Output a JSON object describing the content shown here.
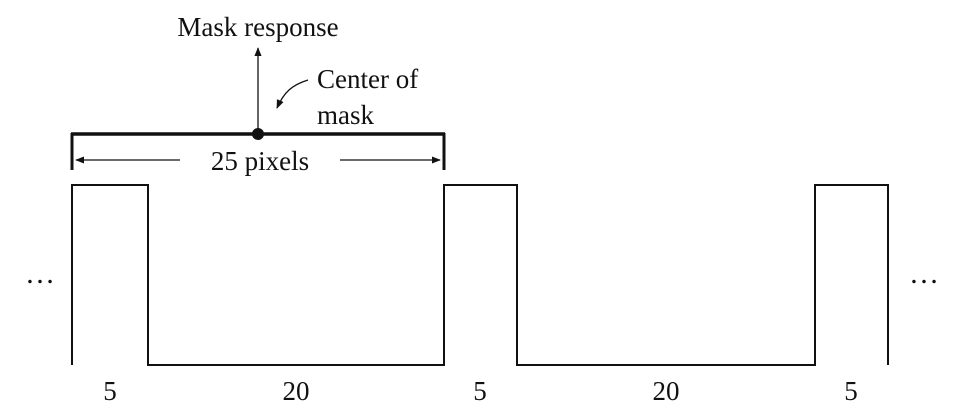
{
  "labels": {
    "mask_response": "Mask response",
    "center_of_line1": "Center of",
    "center_of_line2": "mask",
    "width_label": "25 pixels",
    "left_ellipsis": "…",
    "right_ellipsis": "…"
  },
  "segments": [
    {
      "label": "5"
    },
    {
      "label": "20"
    },
    {
      "label": "5"
    },
    {
      "label": "20"
    },
    {
      "label": "5"
    }
  ],
  "colors": {
    "ink": "#111111",
    "background": "#ffffff"
  }
}
